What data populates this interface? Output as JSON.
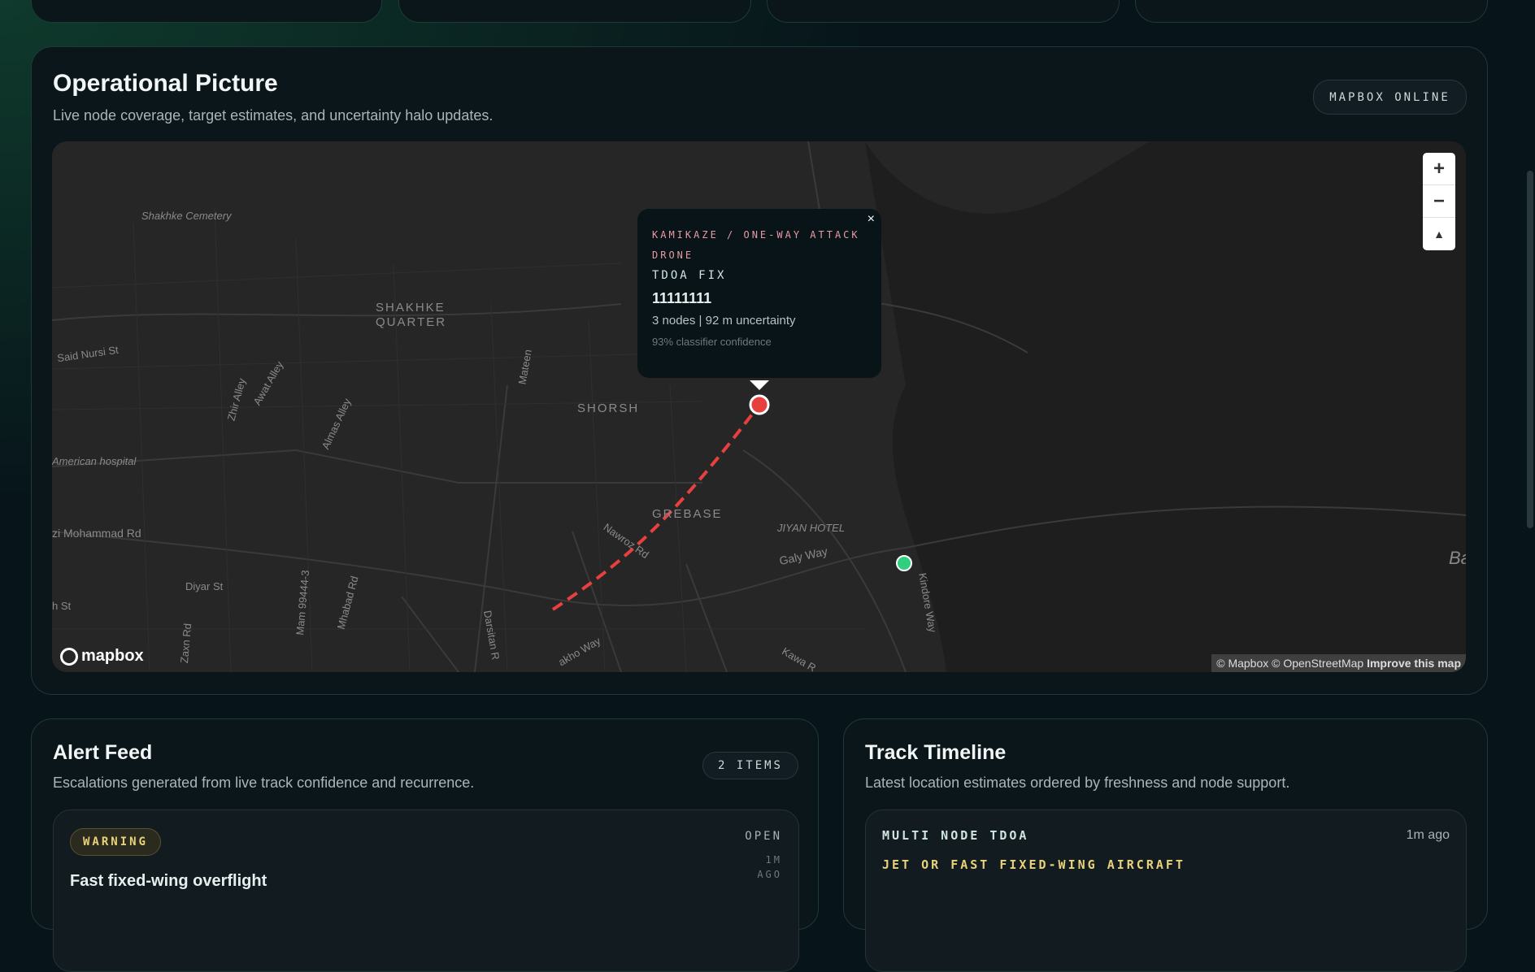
{
  "operational": {
    "title": "Operational Picture",
    "subtitle": "Live node coverage, target estimates, and uncertainty halo updates.",
    "badge": "MAPBOX ONLINE"
  },
  "map": {
    "labels": [
      "Shakhke Cemetery",
      "SHAKHKE",
      "QUARTER",
      "Said Nursi St",
      "Zhir Alley",
      "Awat Alley",
      "Almas Alley",
      "Mateen",
      "SHORSH",
      "American hospital",
      "zi Mohammad Rd",
      "GREBASE",
      "Nawroz Rd",
      "JIYAN HOTEL",
      "Galy Way",
      "Diyar St",
      "Mam 99444-3",
      "Mhabad Rd",
      "Darsitan R",
      "Zaxn Rd",
      "h St",
      "akho Way",
      "Kawa R",
      "Kindore Way",
      "Ba"
    ],
    "logo": "mapbox",
    "attribution": "© Mapbox © OpenStreetMap",
    "improve": "Improve this map",
    "zoom_in": "+",
    "zoom_out": "−",
    "compass": "▲",
    "popup": {
      "class": "KAMIKAZE / ONE-WAY ATTACK DRONE",
      "fix": "TDOA FIX",
      "id": "11111111",
      "detail": "3 nodes | 92 m uncertainty",
      "confidence": "93% classifier confidence",
      "close": "×"
    },
    "colors": {
      "target": "#e8403f",
      "node": "#2fcf7f",
      "track": "#e8403f"
    }
  },
  "alerts": {
    "title": "Alert Feed",
    "subtitle": "Escalations generated from live track confidence and recurrence.",
    "count": "2 ITEMS",
    "items": [
      {
        "severity": "WARNING",
        "status": "OPEN",
        "age1": "1M",
        "age2": "AGO",
        "title": "Fast fixed-wing overflight"
      }
    ]
  },
  "timeline": {
    "title": "Track Timeline",
    "subtitle": "Latest location estimates ordered by freshness and node support.",
    "items": [
      {
        "method": "MULTI NODE TDOA",
        "time": "1m ago",
        "class": "JET OR FAST FIXED-WING AIRCRAFT"
      }
    ]
  }
}
